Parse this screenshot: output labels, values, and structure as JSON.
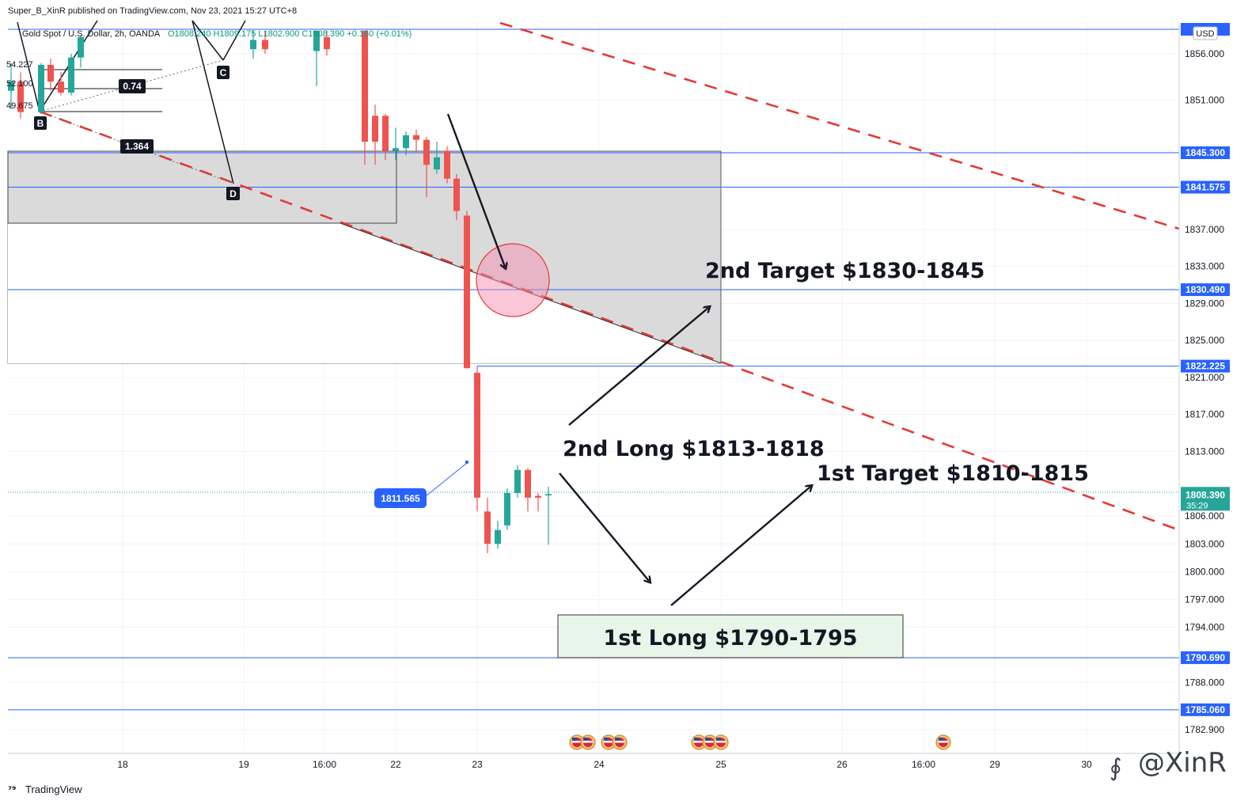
{
  "header": {
    "publisher": "Super_B_XinR published on TradingView.com, Nov 23, 2021 15:27 UTC+8",
    "symbol_line": "Gold Spot / U.S. Dollar, 2h, OANDA",
    "ohlc": "O1808.240 H1809.175 L1802.900 C1808.390 +0.150 (+0.01%)"
  },
  "currency": "USD",
  "footer": {
    "brand": "TradingView",
    "watermark": "@XinR"
  },
  "colors": {
    "up": "#26a69a",
    "down": "#ef5350",
    "hline": "#2962ff",
    "trend": "#e53935",
    "zone": "#d1d1d1",
    "long_box": "#e8f5e9"
  },
  "annotations": {
    "second_target": "2nd Target $1830-1845",
    "second_long": "2nd Long $1813-1818",
    "first_target": "1st Target $1810-1815",
    "first_long": "1st Long $1790-1795",
    "price_callout": "1811.565"
  },
  "pattern": {
    "points": [
      "B",
      "C",
      "D"
    ],
    "ratios": [
      "0.74",
      "1.364"
    ],
    "fib_levels": [
      "54.227",
      "52.100",
      "49.675"
    ]
  },
  "chart_data": {
    "type": "candlestick",
    "symbol": "Gold Spot / U.S. Dollar",
    "timeframe": "2h",
    "x_ticks": [
      "18",
      "19",
      "16:00",
      "22",
      "23",
      "24",
      "25",
      "26",
      "16:00",
      "29",
      "30"
    ],
    "y_ticks": [
      1856,
      1851,
      1837,
      1833,
      1829,
      1825,
      1821,
      1817,
      1813,
      1806,
      1803,
      1800,
      1797,
      1794,
      1788,
      1782.9
    ],
    "ylim": [
      1781,
      1858.5
    ],
    "horizontal_levels": [
      1845.3,
      1841.575,
      1830.49,
      1822.225,
      1790.69,
      1785.06
    ],
    "last_price": 1808.39,
    "countdown": "35:29",
    "candles": [
      {
        "o": 1852,
        "h": 1855,
        "l": 1850,
        "c": 1853
      },
      {
        "o": 1853,
        "h": 1854,
        "l": 1849,
        "c": 1849.7
      },
      {
        "o": 1849.7,
        "h": 1855,
        "l": 1849.5,
        "c": 1854.8
      },
      {
        "o": 1854.8,
        "h": 1855.5,
        "l": 1852,
        "c": 1853
      },
      {
        "o": 1853,
        "h": 1854,
        "l": 1851.5,
        "c": 1851.8
      },
      {
        "o": 1851.8,
        "h": 1856,
        "l": 1851.5,
        "c": 1855.6
      },
      {
        "o": 1855.6,
        "h": 1858,
        "l": 1854.5,
        "c": 1857.8
      },
      {
        "o": 1856.5,
        "h": 1858.5,
        "l": 1855.5,
        "c": 1857.5
      },
      {
        "o": 1857.5,
        "h": 1858.5,
        "l": 1856,
        "c": 1856.5
      },
      {
        "o": 1856.3,
        "h": 1858.5,
        "l": 1852.5,
        "c": 1858.5
      },
      {
        "o": 1857.8,
        "h": 1858.5,
        "l": 1855.8,
        "c": 1856.5
      },
      {
        "o": 1858.5,
        "h": 1858.5,
        "l": 1844,
        "c": 1846.5
      },
      {
        "o": 1849.3,
        "h": 1850.5,
        "l": 1844,
        "c": 1846.5
      },
      {
        "o": 1849.3,
        "h": 1849.5,
        "l": 1844.5,
        "c": 1845.5
      },
      {
        "o": 1845.5,
        "h": 1848,
        "l": 1844.5,
        "c": 1845.8
      },
      {
        "o": 1845.8,
        "h": 1847.6,
        "l": 1845,
        "c": 1847.2
      },
      {
        "o": 1847.2,
        "h": 1847.8,
        "l": 1845.5,
        "c": 1846.7
      },
      {
        "o": 1846.7,
        "h": 1847,
        "l": 1840.5,
        "c": 1844
      },
      {
        "o": 1843.5,
        "h": 1846.5,
        "l": 1843,
        "c": 1844.8
      },
      {
        "o": 1845.5,
        "h": 1846,
        "l": 1842,
        "c": 1842.5
      },
      {
        "o": 1842.5,
        "h": 1843,
        "l": 1838,
        "c": 1839
      },
      {
        "o": 1838.5,
        "h": 1839,
        "l": 1822,
        "c": 1822
      },
      {
        "o": 1821.5,
        "h": 1822,
        "l": 1806.5,
        "c": 1808
      },
      {
        "o": 1806.5,
        "h": 1808,
        "l": 1802,
        "c": 1803
      },
      {
        "o": 1803,
        "h": 1805.5,
        "l": 1802.5,
        "c": 1804.5
      },
      {
        "o": 1805,
        "h": 1809,
        "l": 1804.5,
        "c": 1808.5
      },
      {
        "o": 1808.5,
        "h": 1811.5,
        "l": 1808,
        "c": 1811
      },
      {
        "o": 1811,
        "h": 1811.2,
        "l": 1806.5,
        "c": 1808
      },
      {
        "o": 1808.2,
        "h": 1808.5,
        "l": 1806.5,
        "c": 1808
      },
      {
        "o": 1808.24,
        "h": 1809.175,
        "l": 1802.9,
        "c": 1808.39
      }
    ]
  }
}
